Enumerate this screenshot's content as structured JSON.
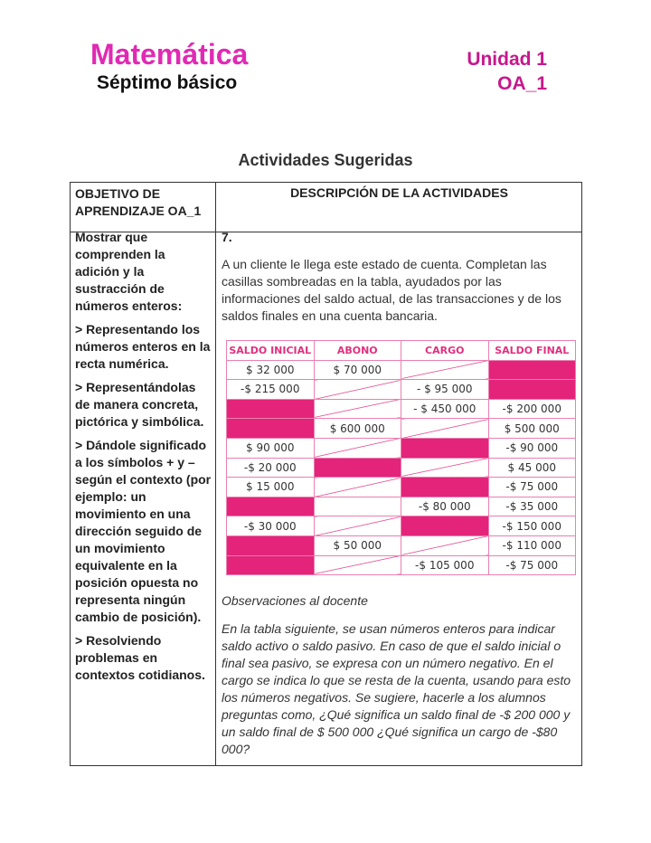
{
  "header": {
    "subject": "Matemática",
    "grade": "Séptimo básico",
    "unit": "Unidad 1",
    "oa": "OA_1"
  },
  "title": "Actividades Sugeridas",
  "table": {
    "col1_header": "OBJETIVO DE APRENDIZAJE OA_1",
    "col2_header": "DESCRIPCIÓN DE LA ACTIVIDADES",
    "objective": [
      "Mostrar que comprenden la adición y la sustracción de números enteros:",
      "> Representando los números enteros en la recta numérica.",
      "> Representándolas de manera concreta, pictórica y simbólica.",
      "> Dándole significado a los símbolos + y – según el contexto (por ejemplo: un movimiento en una dirección seguido de un movimiento equivalente en la posición opuesta no representa ningún cambio de posición).",
      "> Resolviendo problemas en contextos cotidianos."
    ],
    "activity_number": "7.",
    "activity_text": "A un cliente le llega este estado de cuenta. Completan las casillas sombreadas en la tabla, ayudados por las informaciones del saldo actual, de las transacciones y de los saldos finales en una cuenta bancaria.",
    "account_table": {
      "headers": [
        "SALDO INICIAL",
        "ABONO",
        "CARGO",
        "SALDO FINAL"
      ],
      "rows": [
        [
          "$ 32 000",
          "$ 70 000",
          "/",
          "#"
        ],
        [
          "-$ 215 000",
          "/",
          "- $ 95 000",
          "#"
        ],
        [
          "#",
          "/",
          "- $ 450 000",
          "-$ 200 000"
        ],
        [
          "#",
          "$ 600 000",
          "/",
          "$ 500 000"
        ],
        [
          "$ 90 000",
          "/",
          "#",
          "-$ 90 000"
        ],
        [
          "-$ 20 000",
          "#",
          "/",
          "$ 45 000"
        ],
        [
          "$ 15 000",
          "/",
          "#",
          "-$ 75 000"
        ],
        [
          "#",
          "",
          "-$ 80 000",
          "-$ 35 000"
        ],
        [
          "-$ 30 000",
          "/",
          "#",
          "-$ 150 000"
        ],
        [
          "#",
          "$ 50 000",
          "/",
          "-$ 110 000"
        ],
        [
          "#",
          "/",
          "-$ 105 000",
          "-$ 75 000"
        ]
      ],
      "shade_color": "#e3247a"
    },
    "observations_title": "Observaciones al docente",
    "observations": "En la tabla siguiente, se usan números enteros para indicar saldo activo o saldo pasivo. En caso de que el saldo inicial o final sea pasivo, se expresa con un número negativo. En el cargo se indica lo que se resta de la cuenta, usando para esto los números negativos. Se sugiere, hacerle a los alumnos preguntas como, ¿Qué significa un saldo final de -$ 200 000 y un saldo final de $ 500 000 ¿Qué significa un cargo de -$80 000?"
  }
}
